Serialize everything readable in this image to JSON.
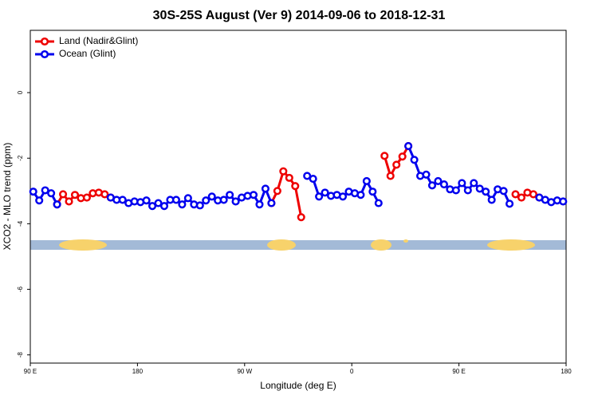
{
  "chart_data": {
    "type": "line",
    "title": "30S-25S August (Ver 9)   2014-09-06 to 2018-12-31",
    "x_label": "Longitude (deg E)",
    "y_label": "XCO2 - MLO trend (ppm)",
    "legend": "top-left",
    "xlim": [
      90,
      540
    ],
    "xticks": [
      {
        "value": 90,
        "label": "90 E"
      },
      180,
      {
        "value": 270,
        "label": "90 W"
      },
      {
        "value": 360,
        "label": "0"
      },
      {
        "value": 450,
        "label": "90 E"
      },
      {
        "value": 540,
        "label": "180"
      }
    ],
    "ylim": [
      -8.25,
      1.9
    ],
    "yticks": [
      -8,
      -6,
      -4,
      -2,
      0
    ],
    "x": [
      92.5,
      97.5,
      102.5,
      107.5,
      112.5,
      117.5,
      122.5,
      127.5,
      132.5,
      137.5,
      142.5,
      147.5,
      152.5,
      157.5,
      162.5,
      167.5,
      172.5,
      177.5,
      182.5,
      187.5,
      192.5,
      197.5,
      202.5,
      207.5,
      212.5,
      217.5,
      222.5,
      227.5,
      232.5,
      237.5,
      242.5,
      247.5,
      252.5,
      257.5,
      262.5,
      267.5,
      272.5,
      277.5,
      282.5,
      287.5,
      292.5,
      297.5,
      302.5,
      307.5,
      312.5,
      317.5,
      322.5,
      327.5,
      332.5,
      337.5,
      342.5,
      347.5,
      352.5,
      357.5,
      362.5,
      367.5,
      372.5,
      377.5,
      382.5,
      387.5,
      392.5,
      397.5,
      402.5,
      407.5,
      412.5,
      417.5,
      422.5,
      427.5,
      432.5,
      437.5,
      442.5,
      447.5,
      452.5,
      457.5,
      462.5,
      467.5,
      472.5,
      477.5,
      482.5,
      487.5,
      492.5,
      497.5,
      502.5,
      507.5,
      512.5,
      517.5,
      522.5,
      527.5,
      532.5,
      537.5
    ],
    "series": [
      {
        "name": "Land (Nadir&Glint)",
        "color": "#ee0000",
        "values": [
          null,
          null,
          null,
          null,
          -3.41,
          -3.1,
          -3.32,
          -3.12,
          -3.22,
          -3.2,
          -3.07,
          -3.05,
          -3.1,
          -3.2,
          null,
          null,
          null,
          null,
          null,
          null,
          null,
          null,
          null,
          null,
          null,
          null,
          null,
          null,
          null,
          null,
          null,
          null,
          null,
          null,
          null,
          null,
          null,
          null,
          null,
          null,
          -3.37,
          -3.0,
          -2.4,
          -2.6,
          -2.85,
          -3.8,
          null,
          null,
          null,
          null,
          null,
          null,
          null,
          null,
          null,
          null,
          null,
          null,
          null,
          -1.93,
          -2.54,
          -2.2,
          -1.95,
          -1.63,
          null,
          null,
          null,
          null,
          null,
          null,
          null,
          null,
          null,
          null,
          null,
          null,
          null,
          null,
          null,
          null,
          null,
          -3.1,
          -3.2,
          -3.05,
          -3.1,
          -3.2,
          null,
          null,
          null,
          null
        ]
      },
      {
        "name": "Ocean (Glint)",
        "color": "#0000ee",
        "values": [
          -3.02,
          -3.29,
          -2.98,
          -3.07,
          -3.41,
          null,
          null,
          null,
          null,
          null,
          null,
          null,
          null,
          -3.2,
          -3.27,
          -3.27,
          -3.37,
          -3.32,
          -3.34,
          -3.29,
          -3.46,
          -3.37,
          -3.46,
          -3.27,
          -3.27,
          -3.41,
          -3.22,
          -3.41,
          -3.44,
          -3.29,
          -3.17,
          -3.29,
          -3.27,
          -3.12,
          -3.32,
          -3.2,
          -3.15,
          -3.12,
          -3.41,
          -2.93,
          -3.37,
          null,
          null,
          null,
          null,
          null,
          -2.54,
          -2.63,
          -3.17,
          -3.05,
          -3.15,
          -3.12,
          -3.17,
          -3.02,
          -3.07,
          -3.12,
          -2.7,
          -3.02,
          -3.37,
          null,
          null,
          null,
          null,
          -1.63,
          -2.05,
          -2.54,
          -2.5,
          -2.83,
          -2.7,
          -2.8,
          -2.95,
          -2.98,
          -2.76,
          -2.98,
          -2.76,
          -2.93,
          -3.02,
          -3.27,
          -2.95,
          -3.0,
          -3.39,
          null,
          null,
          null,
          null,
          -3.2,
          -3.27,
          -3.34,
          -3.29,
          -3.32
        ]
      }
    ]
  }
}
